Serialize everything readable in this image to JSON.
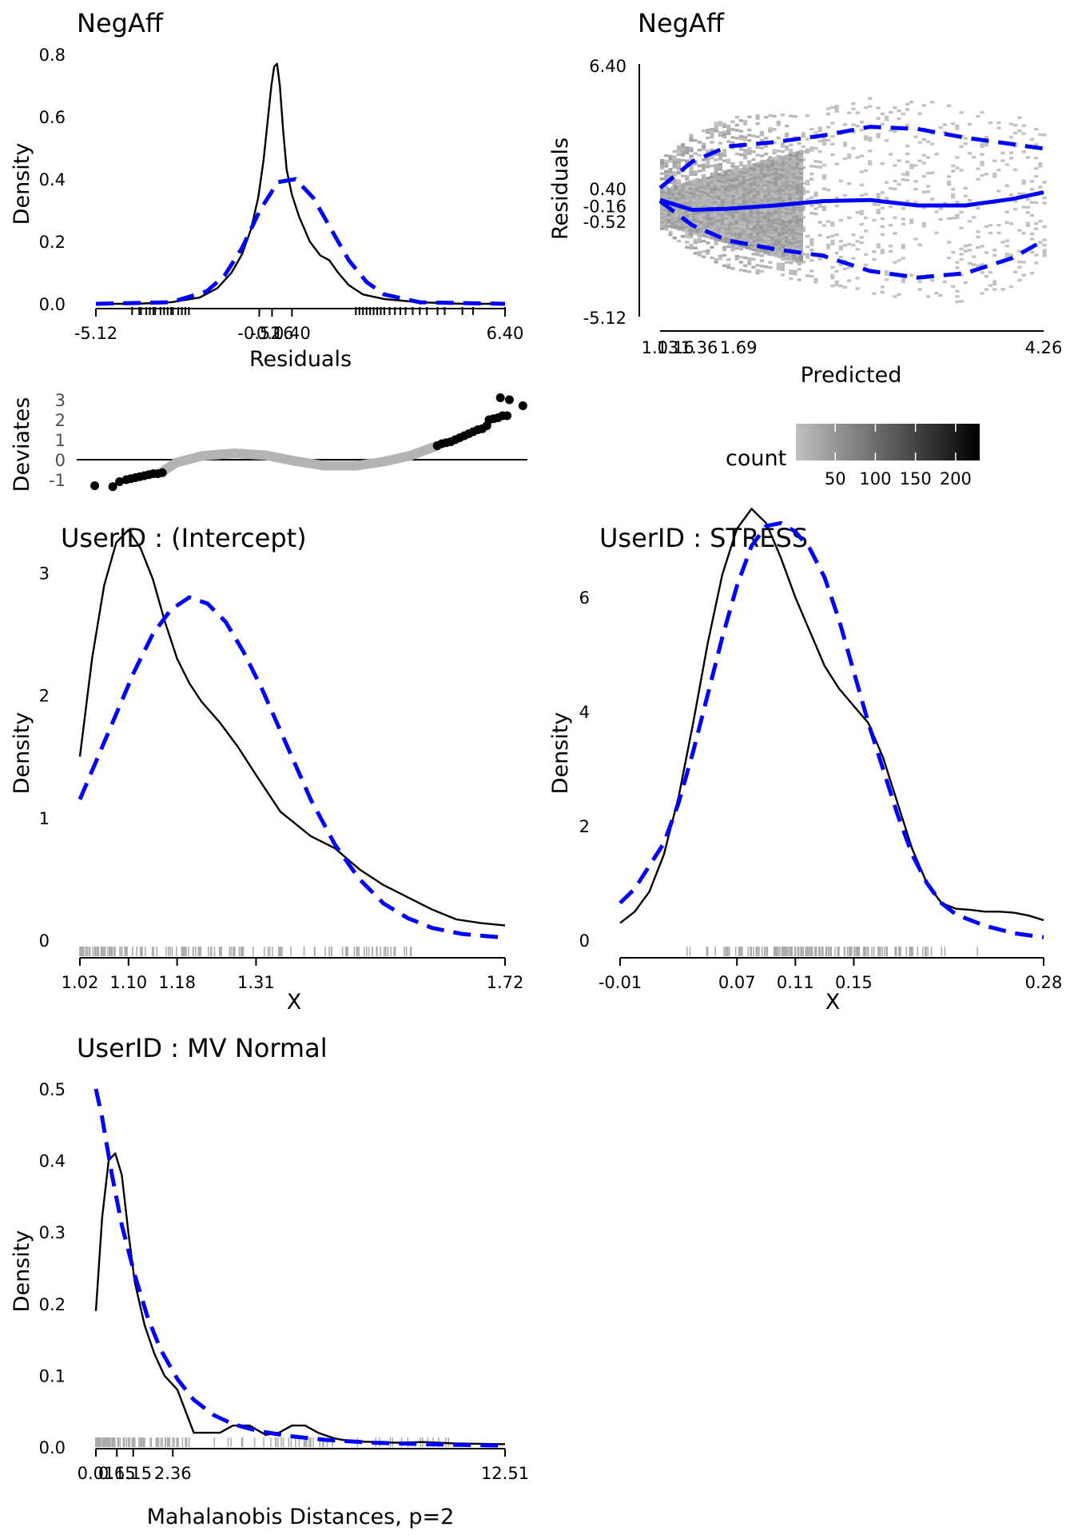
{
  "chart_data": [
    {
      "id": "p1",
      "type": "line",
      "title": "NegAff",
      "xlabel": "Residuals",
      "ylabel": "Density",
      "xticks": [
        "-5.12",
        "-0.52",
        "-0.16",
        "0.40",
        "6.40"
      ],
      "xtick_values": [
        -5.12,
        -0.52,
        -0.16,
        0.4,
        6.4
      ],
      "yticks": [
        "0.0",
        "0.2",
        "0.4",
        "0.6",
        "0.8"
      ],
      "xlim": [
        -5.12,
        6.4
      ],
      "ylim": [
        0,
        0.8
      ],
      "series": [
        {
          "style": "solid-black",
          "x": [
            -5.12,
            -4,
            -3,
            -2.2,
            -1.7,
            -1.3,
            -1.0,
            -0.75,
            -0.55,
            -0.4,
            -0.28,
            -0.18,
            -0.1,
            -0.02,
            0.06,
            0.15,
            0.25,
            0.4,
            0.6,
            0.9,
            1.2,
            1.45,
            1.7,
            2.0,
            2.4,
            3.0,
            4.0,
            5.2,
            6.4
          ],
          "y": [
            0.0,
            0.0,
            0.005,
            0.02,
            0.05,
            0.1,
            0.16,
            0.24,
            0.34,
            0.46,
            0.59,
            0.7,
            0.76,
            0.77,
            0.7,
            0.56,
            0.43,
            0.35,
            0.28,
            0.2,
            0.155,
            0.14,
            0.1,
            0.06,
            0.03,
            0.015,
            0.005,
            0.0,
            0.0
          ]
        },
        {
          "style": "dashed-blue",
          "x": [
            -5.12,
            -3,
            -2,
            -1.5,
            -1,
            -0.5,
            0,
            0.5,
            1,
            1.5,
            2,
            2.5,
            3,
            4,
            6.4
          ],
          "y": [
            0.0,
            0.005,
            0.04,
            0.09,
            0.18,
            0.3,
            0.39,
            0.4,
            0.34,
            0.24,
            0.14,
            0.07,
            0.03,
            0.005,
            0.0
          ]
        }
      ],
      "rug": [
        -4.1,
        -3.9,
        -3.85,
        -3.7,
        -3.6,
        -3.5,
        -3.45,
        -3.3,
        -3.2,
        -3.1,
        -3.0,
        -2.95,
        -2.8,
        -2.7,
        -2.6,
        -2.5,
        2.2,
        2.3,
        2.4,
        2.5,
        2.6,
        2.7,
        2.8,
        2.9,
        3.0,
        3.15,
        3.3,
        3.45,
        3.6,
        3.8,
        4.0,
        4.2,
        4.5,
        4.7,
        5.2,
        5.5,
        6.4
      ]
    },
    {
      "id": "p2",
      "type": "scatter",
      "ylabel": "Deviates",
      "yticks": [
        "-1",
        "0",
        "1",
        "2",
        "3"
      ],
      "ylim": [
        -1.6,
        3.5
      ],
      "xlim": [
        0,
        100
      ],
      "points_black": [
        {
          "x": 4,
          "y": -1.3
        },
        {
          "x": 8,
          "y": -1.35
        },
        {
          "x": 9.5,
          "y": -1.1
        },
        {
          "x": 11,
          "y": -1.0
        },
        {
          "x": 12,
          "y": -0.95
        },
        {
          "x": 13,
          "y": -0.9
        },
        {
          "x": 14,
          "y": -0.85
        },
        {
          "x": 15,
          "y": -0.8
        },
        {
          "x": 16,
          "y": -0.75
        },
        {
          "x": 17,
          "y": -0.7
        },
        {
          "x": 18,
          "y": -0.7
        },
        {
          "x": 19,
          "y": -0.65
        },
        {
          "x": 80,
          "y": 0.7
        },
        {
          "x": 81,
          "y": 0.8
        },
        {
          "x": 82,
          "y": 0.85
        },
        {
          "x": 83,
          "y": 0.9
        },
        {
          "x": 84,
          "y": 1.0
        },
        {
          "x": 85,
          "y": 1.1
        },
        {
          "x": 86,
          "y": 1.2
        },
        {
          "x": 87,
          "y": 1.3
        },
        {
          "x": 88,
          "y": 1.4
        },
        {
          "x": 89,
          "y": 1.5
        },
        {
          "x": 90,
          "y": 1.55
        },
        {
          "x": 91,
          "y": 1.7
        },
        {
          "x": 91.5,
          "y": 2.0
        },
        {
          "x": 92.5,
          "y": 2.05
        },
        {
          "x": 93.5,
          "y": 2.1
        },
        {
          "x": 94.5,
          "y": 2.2
        },
        {
          "x": 95.5,
          "y": 2.2
        },
        {
          "x": 94,
          "y": 3.1
        },
        {
          "x": 96,
          "y": 3.0
        },
        {
          "x": 99,
          "y": 2.7
        }
      ],
      "curve_gray": {
        "x": [
          19,
          22,
          28,
          35,
          42,
          48,
          55,
          62,
          68,
          74,
          80
        ],
        "y": [
          -0.6,
          -0.15,
          0.2,
          0.32,
          0.22,
          -0.05,
          -0.3,
          -0.3,
          -0.1,
          0.2,
          0.7
        ]
      }
    },
    {
      "id": "p3",
      "type": "heatmap",
      "title": "NegAff",
      "xlabel": "Predicted",
      "ylabel": "Residuals",
      "xticks": [
        "1.03",
        "1.16",
        "1.36",
        "1.69",
        "4.26"
      ],
      "xtick_values": [
        1.03,
        1.16,
        1.36,
        1.69,
        4.26
      ],
      "yticks": [
        "-5.12",
        "-0.52",
        "-0.16",
        "0.40",
        "6.40"
      ],
      "ytick_values": [
        -5.12,
        -0.52,
        -0.16,
        0.4,
        6.4
      ],
      "xlim": [
        1.03,
        4.26
      ],
      "ylim": [
        -5.12,
        6.4
      ],
      "legend": {
        "title": "count",
        "ticks": [
          "50",
          "100",
          "150",
          "200"
        ],
        "tick_values": [
          50,
          100,
          150,
          200
        ],
        "range": [
          1,
          230
        ]
      },
      "smooth": {
        "x": [
          1.03,
          1.3,
          1.6,
          2.0,
          2.4,
          2.8,
          3.2,
          3.6,
          4.0,
          4.26
        ],
        "y": [
          0.25,
          -0.2,
          -0.15,
          0.0,
          0.2,
          0.25,
          0.0,
          0.0,
          0.3,
          0.6
        ]
      },
      "upper": {
        "x": [
          1.03,
          1.3,
          1.6,
          2.0,
          2.4,
          2.8,
          3.2,
          3.6,
          4.0,
          4.26
        ],
        "y": [
          0.8,
          2.0,
          2.7,
          2.9,
          3.2,
          3.6,
          3.5,
          3.1,
          2.8,
          2.6
        ]
      },
      "lower": {
        "x": [
          1.03,
          1.3,
          1.6,
          2.0,
          2.4,
          2.8,
          3.2,
          3.6,
          4.0,
          4.26
        ],
        "y": [
          0.2,
          -0.9,
          -1.6,
          -2.0,
          -2.3,
          -3.0,
          -3.3,
          -3.1,
          -2.4,
          -1.6
        ]
      }
    },
    {
      "id": "p4",
      "type": "line",
      "title": "UserID : (Intercept)",
      "xlabel": "X",
      "ylabel": "Density",
      "xticks": [
        "1.02",
        "1.10",
        "1.18",
        "1.31",
        "1.72"
      ],
      "xtick_values": [
        1.02,
        1.1,
        1.18,
        1.31,
        1.72
      ],
      "yticks": [
        "0",
        "1",
        "2",
        "3"
      ],
      "xlim": [
        1.02,
        1.72
      ],
      "ylim": [
        0,
        3.5
      ],
      "series": [
        {
          "style": "solid-black",
          "x": [
            1.02,
            1.04,
            1.06,
            1.08,
            1.1,
            1.12,
            1.14,
            1.16,
            1.18,
            1.2,
            1.22,
            1.25,
            1.28,
            1.31,
            1.35,
            1.4,
            1.44,
            1.48,
            1.52,
            1.56,
            1.6,
            1.64,
            1.68,
            1.72
          ],
          "y": [
            1.5,
            2.3,
            2.9,
            3.25,
            3.35,
            3.2,
            2.95,
            2.6,
            2.3,
            2.1,
            1.95,
            1.78,
            1.58,
            1.35,
            1.05,
            0.85,
            0.75,
            0.58,
            0.45,
            0.35,
            0.25,
            0.17,
            0.14,
            0.12
          ]
        },
        {
          "style": "dashed-blue",
          "x": [
            1.02,
            1.05,
            1.08,
            1.11,
            1.14,
            1.17,
            1.2,
            1.23,
            1.26,
            1.29,
            1.32,
            1.36,
            1.4,
            1.44,
            1.48,
            1.52,
            1.56,
            1.6,
            1.65,
            1.72
          ],
          "y": [
            1.15,
            1.5,
            1.85,
            2.2,
            2.5,
            2.7,
            2.8,
            2.75,
            2.6,
            2.35,
            2.05,
            1.6,
            1.15,
            0.78,
            0.5,
            0.3,
            0.18,
            0.1,
            0.05,
            0.02
          ]
        }
      ]
    },
    {
      "id": "p5",
      "type": "line",
      "title": "UserID : STRESS",
      "xlabel": "X",
      "ylabel": "Density",
      "xticks": [
        "-0.01",
        "0.07",
        "0.11",
        "0.15",
        "0.28"
      ],
      "xtick_values": [
        -0.01,
        0.07,
        0.11,
        0.15,
        0.28
      ],
      "yticks": [
        "0",
        "2",
        "4",
        "6"
      ],
      "xlim": [
        -0.01,
        0.28
      ],
      "ylim": [
        0,
        7.5
      ],
      "series": [
        {
          "style": "solid-black",
          "x": [
            -0.01,
            0.0,
            0.01,
            0.02,
            0.03,
            0.04,
            0.05,
            0.06,
            0.07,
            0.08,
            0.09,
            0.1,
            0.11,
            0.12,
            0.13,
            0.14,
            0.15,
            0.16,
            0.17,
            0.18,
            0.19,
            0.2,
            0.21,
            0.22,
            0.23,
            0.24,
            0.25,
            0.26,
            0.27,
            0.28
          ],
          "y": [
            0.3,
            0.5,
            0.85,
            1.5,
            2.5,
            3.8,
            5.2,
            6.4,
            7.2,
            7.55,
            7.3,
            6.7,
            6.0,
            5.4,
            4.8,
            4.4,
            4.1,
            3.8,
            3.2,
            2.4,
            1.6,
            1.0,
            0.65,
            0.55,
            0.53,
            0.5,
            0.5,
            0.48,
            0.43,
            0.35
          ]
        },
        {
          "style": "dashed-blue",
          "x": [
            -0.01,
            0.0,
            0.02,
            0.03,
            0.04,
            0.05,
            0.06,
            0.07,
            0.08,
            0.09,
            0.1,
            0.11,
            0.12,
            0.13,
            0.14,
            0.15,
            0.16,
            0.17,
            0.18,
            0.19,
            0.2,
            0.21,
            0.22,
            0.24,
            0.26,
            0.28
          ],
          "y": [
            0.65,
            0.9,
            1.7,
            2.4,
            3.3,
            4.3,
            5.3,
            6.2,
            6.9,
            7.25,
            7.3,
            7.15,
            6.85,
            6.35,
            5.6,
            4.7,
            3.8,
            3.0,
            2.2,
            1.5,
            1.0,
            0.65,
            0.45,
            0.25,
            0.12,
            0.05
          ]
        }
      ]
    },
    {
      "id": "p6",
      "type": "line",
      "title": "UserID : MV Normal",
      "xlabel": "Mahalanobis Distances, p=2",
      "ylabel": "Density",
      "xticks": [
        "0.01",
        "0.65",
        "1.15",
        "2.36",
        "12.51"
      ],
      "xtick_values": [
        0.01,
        0.65,
        1.15,
        2.36,
        12.51
      ],
      "yticks": [
        "0.0",
        "0.1",
        "0.2",
        "0.3",
        "0.4",
        "0.5"
      ],
      "xlim": [
        0.01,
        12.51
      ],
      "ylim": [
        0,
        0.5
      ],
      "series": [
        {
          "style": "solid-black",
          "x": [
            0.01,
            0.2,
            0.4,
            0.6,
            0.8,
            1.0,
            1.2,
            1.5,
            1.8,
            2.1,
            2.5,
            3.0,
            3.4,
            3.8,
            4.2,
            4.7,
            5.2,
            5.6,
            6.0,
            6.4,
            6.8,
            7.3,
            7.8,
            8.5,
            9.2,
            10,
            11,
            12.51
          ],
          "y": [
            0.19,
            0.32,
            0.4,
            0.41,
            0.38,
            0.3,
            0.23,
            0.17,
            0.13,
            0.1,
            0.08,
            0.02,
            0.02,
            0.02,
            0.03,
            0.03,
            0.017,
            0.02,
            0.03,
            0.03,
            0.02,
            0.012,
            0.008,
            0.007,
            0.006,
            0.007,
            0.005,
            0.004
          ]
        },
        {
          "style": "dashed-blue",
          "x": [
            0.01,
            0.2,
            0.5,
            0.8,
            1.2,
            1.6,
            2.0,
            2.5,
            3.0,
            3.6,
            4.2,
            5.0,
            6.0,
            7.0,
            8.5,
            10,
            12.51
          ],
          "y": [
            0.5,
            0.46,
            0.38,
            0.31,
            0.24,
            0.18,
            0.135,
            0.095,
            0.066,
            0.045,
            0.032,
            0.022,
            0.015,
            0.01,
            0.006,
            0.004,
            0.002
          ]
        }
      ]
    }
  ]
}
